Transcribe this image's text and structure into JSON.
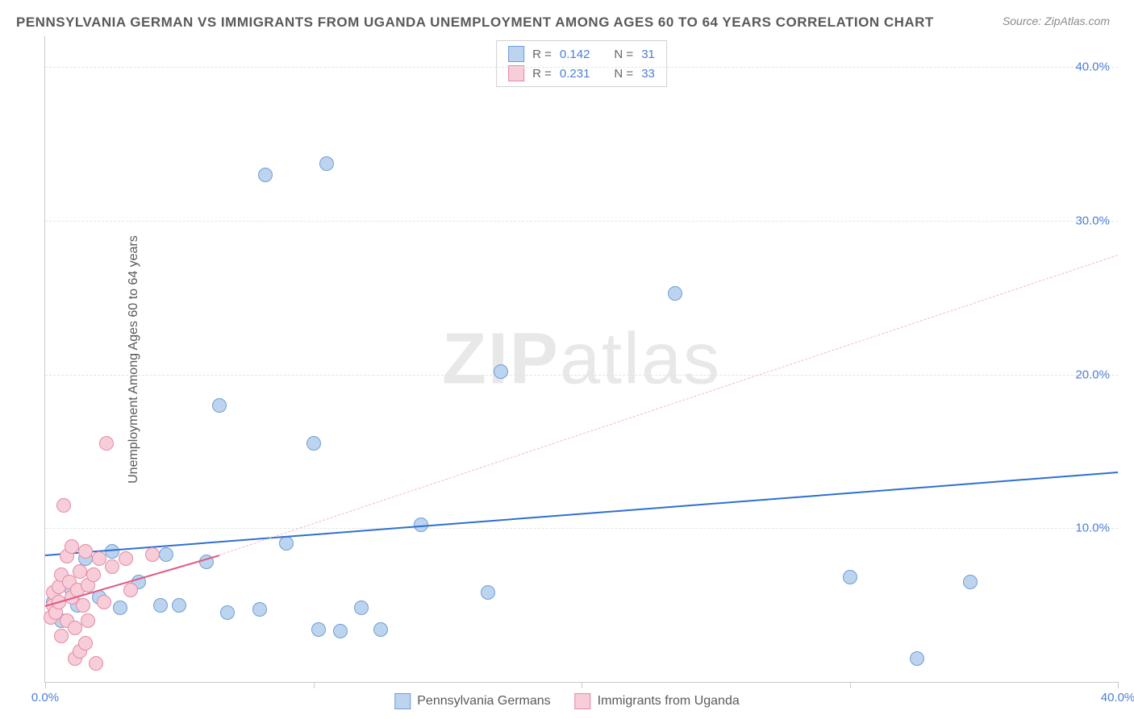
{
  "title": "PENNSYLVANIA GERMAN VS IMMIGRANTS FROM UGANDA UNEMPLOYMENT AMONG AGES 60 TO 64 YEARS CORRELATION CHART",
  "source": "Source: ZipAtlas.com",
  "ylabel": "Unemployment Among Ages 60 to 64 years",
  "watermark_bold": "ZIP",
  "watermark_rest": "atlas",
  "chart": {
    "type": "scatter",
    "xlim": [
      0,
      40
    ],
    "ylim": [
      0,
      42
    ],
    "ytick_values": [
      10,
      20,
      30,
      40
    ],
    "ytick_labels": [
      "10.0%",
      "20.0%",
      "30.0%",
      "40.0%"
    ],
    "xtick_values": [
      0,
      10,
      20,
      30,
      40
    ],
    "xtick_labels": [
      "0.0%",
      "",
      "",
      "",
      "40.0%"
    ],
    "grid_color": "#e5e5e5",
    "axis_color": "#c9c9c9",
    "point_radius": 8,
    "series": [
      {
        "name": "Pennsylvania Germans",
        "fill": "#bcd4ee",
        "stroke": "#6f9ed9",
        "r_value": "0.142",
        "n_value": "31",
        "trend": {
          "x1": 0,
          "y1": 8.3,
          "x2": 40,
          "y2": 13.7,
          "color": "#2f6fd0",
          "width": 2.5,
          "dash": false
        },
        "points": [
          [
            0.3,
            5.2
          ],
          [
            0.6,
            4.0
          ],
          [
            1.0,
            6.0
          ],
          [
            1.2,
            5.0
          ],
          [
            1.5,
            8.0
          ],
          [
            2.0,
            5.5
          ],
          [
            2.5,
            8.5
          ],
          [
            2.8,
            4.8
          ],
          [
            3.5,
            6.5
          ],
          [
            4.3,
            5.0
          ],
          [
            4.5,
            8.3
          ],
          [
            5.0,
            5.0
          ],
          [
            6.0,
            7.8
          ],
          [
            6.5,
            18.0
          ],
          [
            6.8,
            4.5
          ],
          [
            8.0,
            4.7
          ],
          [
            8.2,
            33.0
          ],
          [
            9.0,
            9.0
          ],
          [
            10.0,
            15.5
          ],
          [
            10.2,
            3.4
          ],
          [
            10.5,
            33.7
          ],
          [
            11.0,
            3.3
          ],
          [
            11.8,
            4.8
          ],
          [
            12.5,
            3.4
          ],
          [
            14.0,
            10.2
          ],
          [
            16.5,
            5.8
          ],
          [
            17.0,
            20.2
          ],
          [
            23.5,
            25.3
          ],
          [
            30.0,
            6.8
          ],
          [
            32.5,
            1.5
          ],
          [
            34.5,
            6.5
          ]
        ]
      },
      {
        "name": "Immigrants from Uganda",
        "fill": "#f6cdd8",
        "stroke": "#e58aa3",
        "r_value": "0.231",
        "n_value": "33",
        "trend_solid": {
          "x1": 0,
          "y1": 5.0,
          "x2": 6.5,
          "y2": 8.3,
          "color": "#e05a85",
          "width": 2,
          "dash": false
        },
        "trend_dash": {
          "x1": 6.5,
          "y1": 8.3,
          "x2": 40,
          "y2": 27.8,
          "color": "#f4b8c8",
          "width": 1.5,
          "dash": true
        },
        "points": [
          [
            0.2,
            4.2
          ],
          [
            0.3,
            5.0
          ],
          [
            0.3,
            5.8
          ],
          [
            0.4,
            4.5
          ],
          [
            0.5,
            5.2
          ],
          [
            0.5,
            6.2
          ],
          [
            0.6,
            7.0
          ],
          [
            0.6,
            3.0
          ],
          [
            0.7,
            11.5
          ],
          [
            0.8,
            8.2
          ],
          [
            0.8,
            4.0
          ],
          [
            0.9,
            6.5
          ],
          [
            1.0,
            5.5
          ],
          [
            1.0,
            8.8
          ],
          [
            1.1,
            3.5
          ],
          [
            1.1,
            1.5
          ],
          [
            1.2,
            6.0
          ],
          [
            1.3,
            2.0
          ],
          [
            1.3,
            7.2
          ],
          [
            1.4,
            5.0
          ],
          [
            1.5,
            8.5
          ],
          [
            1.5,
            2.5
          ],
          [
            1.6,
            6.3
          ],
          [
            1.6,
            4.0
          ],
          [
            1.8,
            7.0
          ],
          [
            1.9,
            1.2
          ],
          [
            2.0,
            8.0
          ],
          [
            2.2,
            5.2
          ],
          [
            2.3,
            15.5
          ],
          [
            2.5,
            7.5
          ],
          [
            3.0,
            8.0
          ],
          [
            3.2,
            6.0
          ],
          [
            4.0,
            8.3
          ]
        ]
      }
    ]
  },
  "legend_top": {
    "r_label": "R =",
    "n_label": "N ="
  },
  "legend_bottom": {
    "series1": "Pennsylvania Germans",
    "series2": "Immigrants from Uganda"
  }
}
